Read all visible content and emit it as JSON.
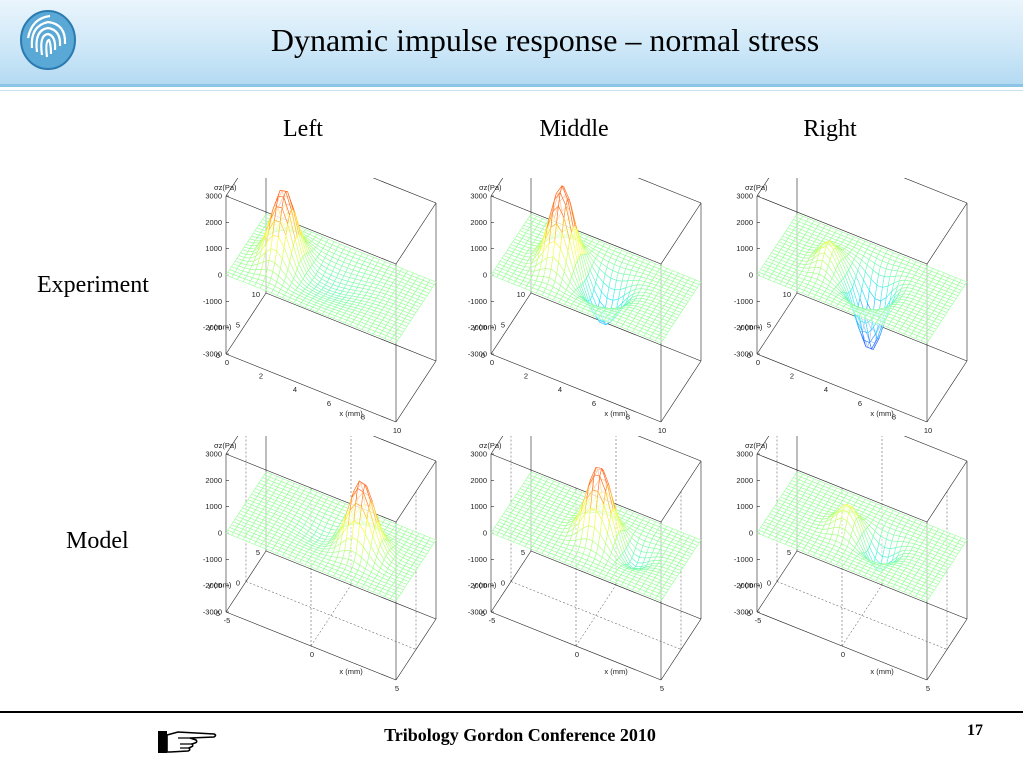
{
  "title": "Dynamic impulse response – normal stress",
  "columns": [
    "Left",
    "Middle",
    "Right"
  ],
  "rows": [
    "Experiment",
    "Model"
  ],
  "footer": {
    "conference": "Tribology Gordon Conference 2010",
    "page": "17"
  },
  "axes": {
    "z_label": "σz(Pa)",
    "z_ticks": [
      "3000",
      "2000",
      "1000",
      "0",
      "-1000",
      "-2000",
      "-3000"
    ],
    "experiment": {
      "x_label": "x (mm)",
      "y_label": "y (mm)",
      "x_ticks": [
        "0",
        "2",
        "4",
        "6",
        "8",
        "10"
      ],
      "y_ticks": [
        "10",
        "5",
        "0"
      ]
    },
    "model": {
      "x_label": "x (mm)",
      "y_label": "y (mm)",
      "x_ticks": [
        "-5",
        "0",
        "5"
      ],
      "y_ticks": [
        "5",
        "0",
        "-5"
      ]
    }
  },
  "icons": {
    "logo": "fingerprint-logo-icon",
    "nav": "pointing-hand-icon"
  },
  "colors": {
    "header": "#cfe8f8",
    "accent": "#8cc4e6",
    "surface_low": "#66ccff",
    "surface_mid": "#99ff99",
    "surface_high": "#ff6633"
  }
}
